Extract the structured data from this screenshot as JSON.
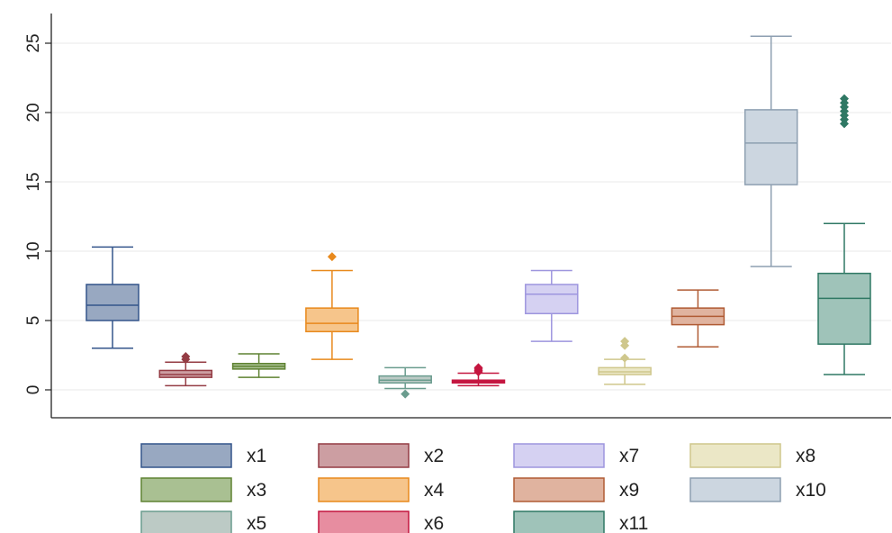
{
  "chart_data": {
    "type": "box",
    "title": "",
    "xlabel": "",
    "ylabel": "",
    "ylim": [
      -2,
      27
    ],
    "yticks": [
      "0",
      "5",
      "10",
      "15",
      "20",
      "25"
    ],
    "grid": true,
    "legend_position": "bottom",
    "series": [
      {
        "name": "x1",
        "color": "#34558b",
        "fill": "#98a8c1",
        "whisker_low": 3.0,
        "q1": 5.0,
        "median": 6.1,
        "q3": 7.6,
        "whisker_high": 10.3,
        "outliers": []
      },
      {
        "name": "x2",
        "color": "#943c44",
        "fill": "#cc9ea2",
        "whisker_low": 0.3,
        "q1": 0.9,
        "median": 1.1,
        "q3": 1.4,
        "whisker_high": 2.0,
        "outliers": [
          2.2,
          2.4
        ]
      },
      {
        "name": "x3",
        "color": "#5f8232",
        "fill": "#a9c092",
        "whisker_low": 0.9,
        "q1": 1.5,
        "median": 1.7,
        "q3": 1.9,
        "whisker_high": 2.6,
        "outliers": []
      },
      {
        "name": "x4",
        "color": "#e8891c",
        "fill": "#f6c58b",
        "whisker_low": 2.2,
        "q1": 4.2,
        "median": 4.8,
        "q3": 5.9,
        "whisker_high": 8.6,
        "outliers": [
          9.6
        ]
      },
      {
        "name": "x5",
        "color": "#6a9c8e",
        "fill": "#bccac5",
        "whisker_low": 0.1,
        "q1": 0.5,
        "median": 0.7,
        "q3": 1.0,
        "whisker_high": 1.6,
        "outliers": [
          -0.3
        ]
      },
      {
        "name": "x6",
        "color": "#c4153f",
        "fill": "#e78da0",
        "whisker_low": 0.3,
        "q1": 0.5,
        "median": 0.6,
        "q3": 0.7,
        "whisker_high": 1.2,
        "outliers": [
          1.3,
          1.4,
          1.5,
          1.6
        ]
      },
      {
        "name": "x7",
        "color": "#9d95de",
        "fill": "#d5d1f2",
        "whisker_low": 3.5,
        "q1": 5.5,
        "median": 6.9,
        "q3": 7.6,
        "whisker_high": 8.6,
        "outliers": []
      },
      {
        "name": "x8",
        "color": "#cfc78c",
        "fill": "#ebe7c6",
        "whisker_low": 0.4,
        "q1": 1.1,
        "median": 1.3,
        "q3": 1.6,
        "whisker_high": 2.2,
        "outliers": [
          2.3,
          3.2,
          3.5
        ]
      },
      {
        "name": "x9",
        "color": "#b05b34",
        "fill": "#e0b39f",
        "whisker_low": 3.1,
        "q1": 4.7,
        "median": 5.3,
        "q3": 5.9,
        "whisker_high": 7.2,
        "outliers": []
      },
      {
        "name": "x10",
        "color": "#8d9fb1",
        "fill": "#ccd6e0",
        "whisker_low": 8.9,
        "q1": 14.8,
        "median": 17.8,
        "q3": 20.2,
        "whisker_high": 25.5,
        "outliers": []
      },
      {
        "name": "x11",
        "color": "#2f7864",
        "fill": "#9fc3b9",
        "whisker_low": 1.1,
        "q1": 3.3,
        "median": 6.6,
        "q3": 8.4,
        "whisker_high": 12.0,
        "outliers": [
          19.2,
          19.5,
          19.8,
          20.1,
          20.4,
          20.7,
          21.0
        ]
      }
    ],
    "legend_order": [
      "x1",
      "x2",
      "x7",
      "x8",
      "x3",
      "x4",
      "x9",
      "x10",
      "x5",
      "x6",
      "x11"
    ]
  }
}
